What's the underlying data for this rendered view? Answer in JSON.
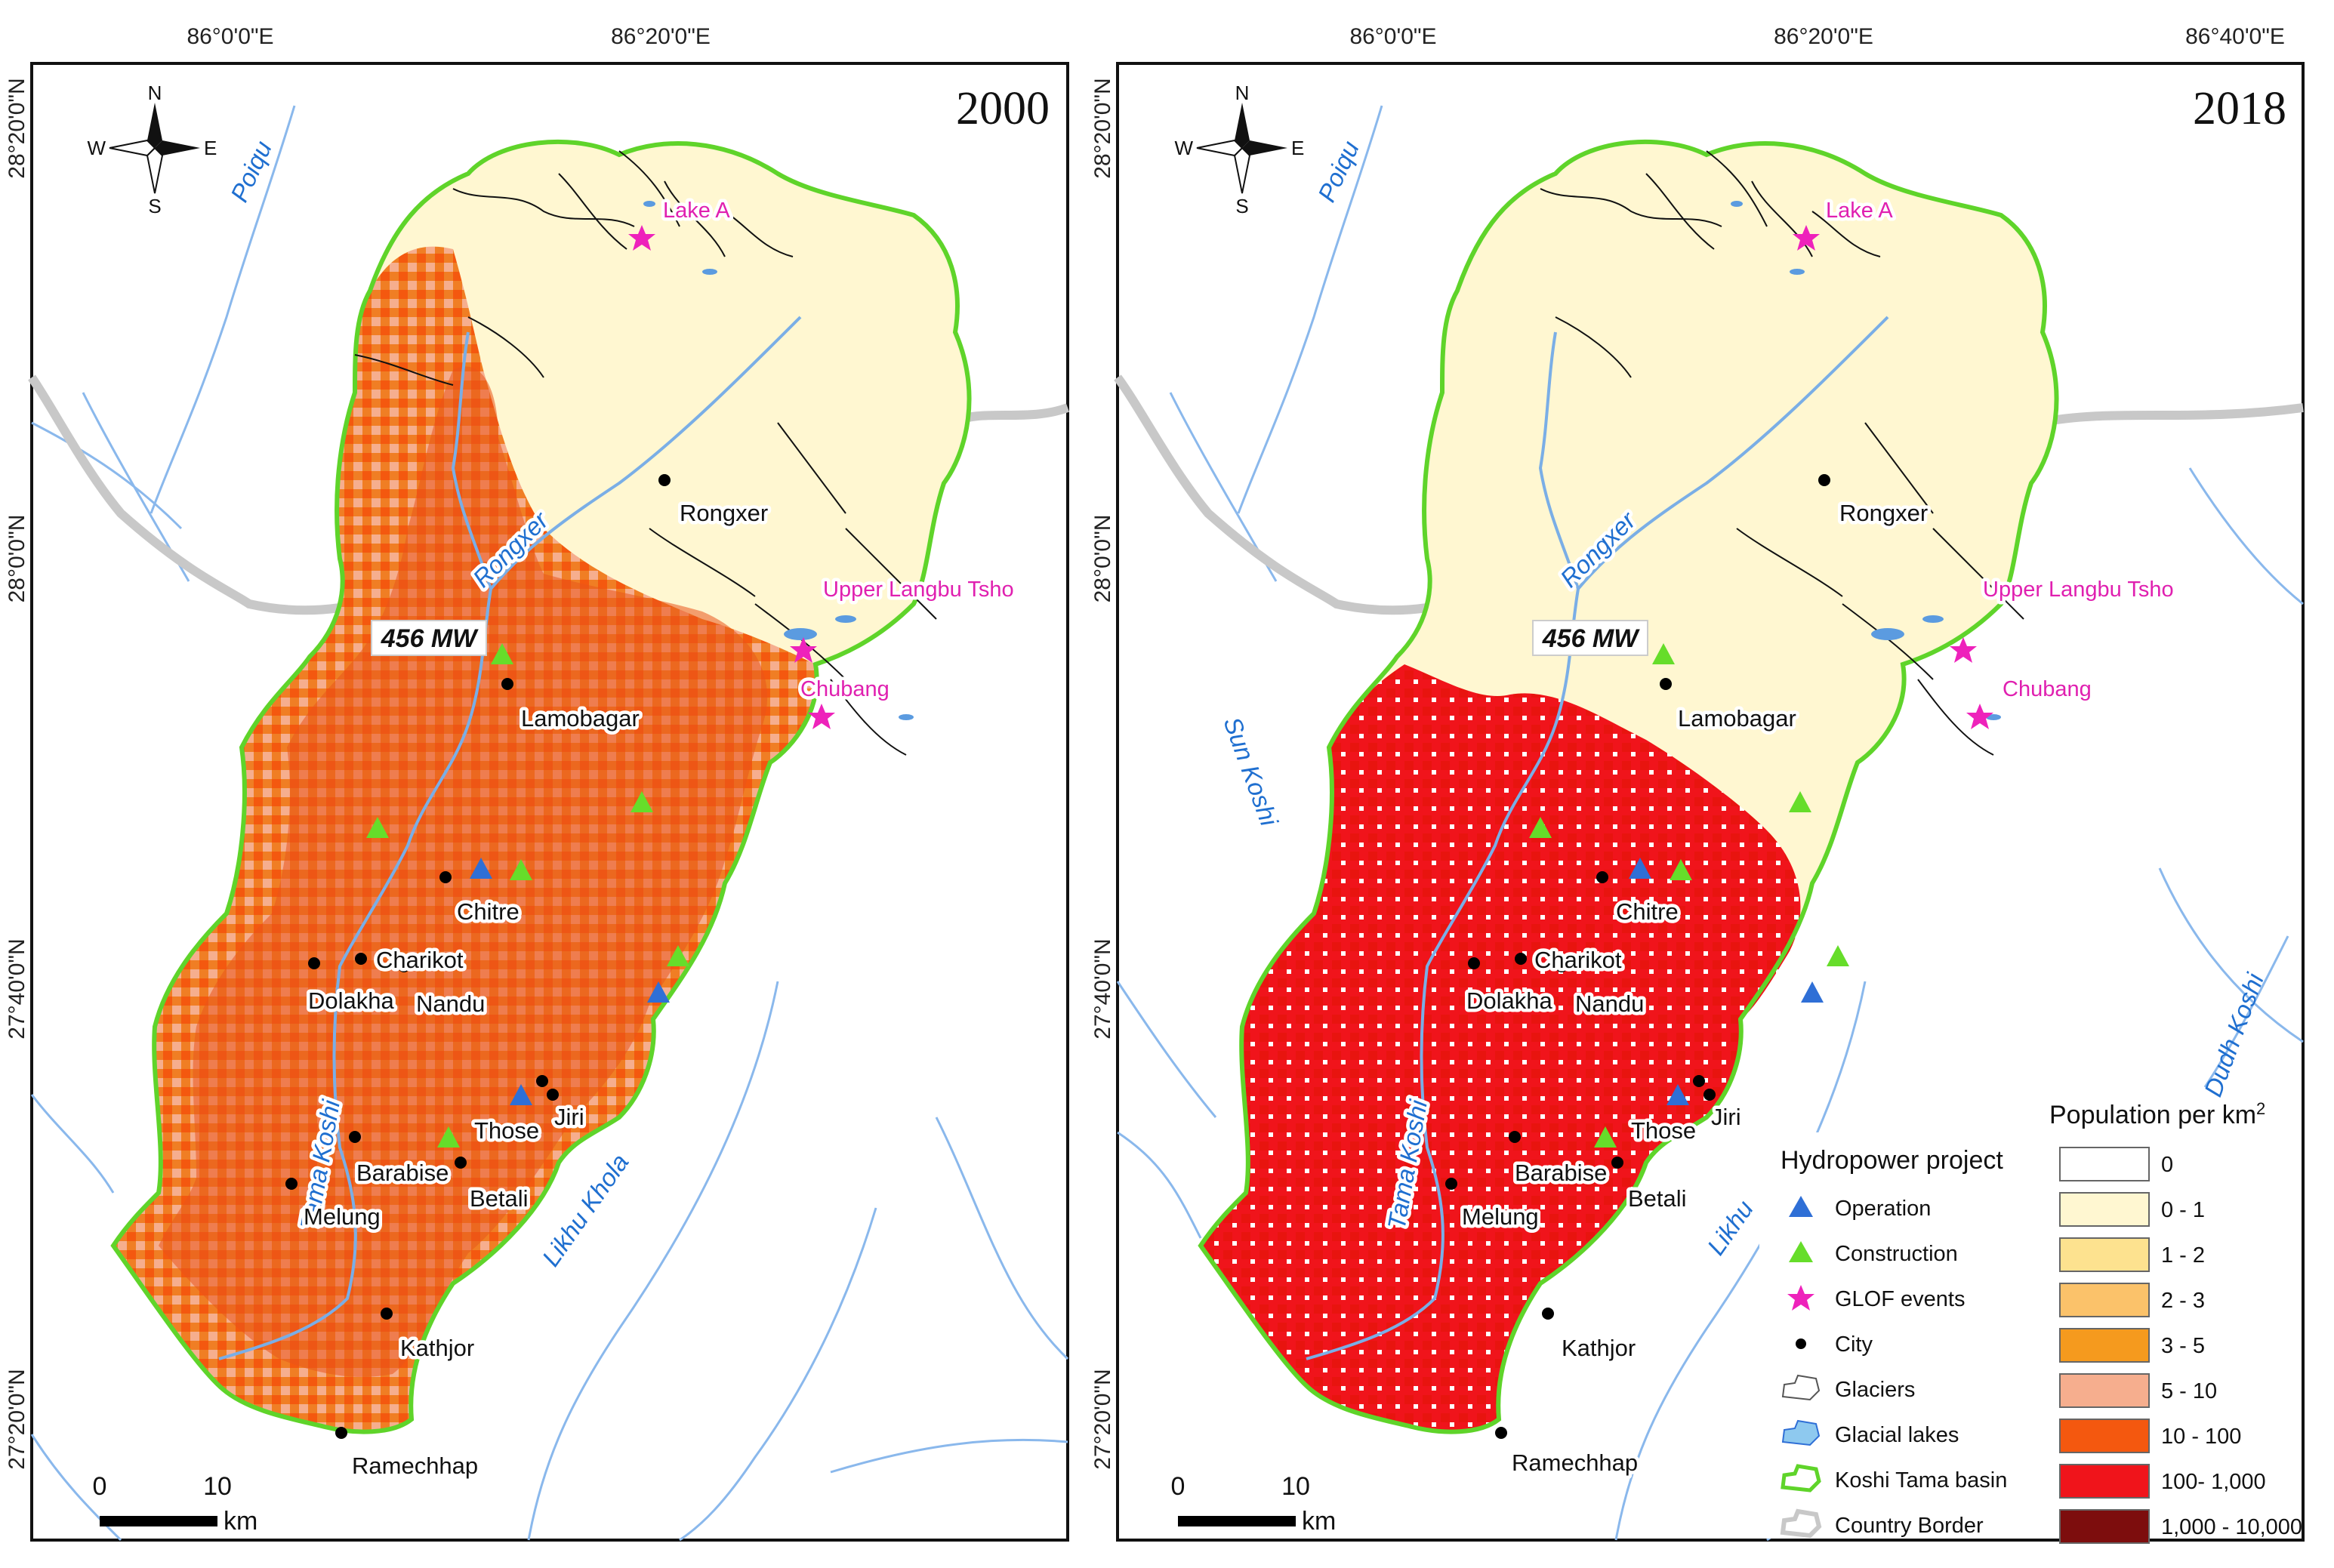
{
  "colors": {
    "basin": "#5fd42a",
    "river": "#7aaee6",
    "border": "#c8c8c8",
    "lake": "#5b9be0",
    "operation": "#2f6fd6",
    "construction": "#66dd2a",
    "glof": "#ee22bb",
    "city": "#000000"
  },
  "axes": {
    "lon_labels": [
      "86°0'0\"E",
      "86°20'0\"E",
      "86°40'0\"E"
    ],
    "lat_labels": [
      "28°20'0\"N",
      "28°0'0\"N",
      "27°40'0\"N",
      "27°20'0\"N"
    ]
  },
  "maps": [
    {
      "year": "2000",
      "dam_label": "456 MW",
      "fill_color": "#f07e24",
      "core_color": "#e9561b"
    },
    {
      "year": "2018",
      "dam_label": "456 MW",
      "fill_color": "#f01b12",
      "core_color": "#e8140f"
    }
  ],
  "places": {
    "rongxer": "Rongxer",
    "lamobagar": "Lamobagar",
    "chitre": "Chitre",
    "charikot": "Charikot",
    "dolakha": "Dolakha",
    "nandu": "Nandu",
    "those": "Those",
    "jiri": "Jiri",
    "barabise": "Barabise",
    "betali": "Betali",
    "melung": "Melung",
    "kathjor": "Kathjor",
    "ramechhap": "Ramechhap"
  },
  "glof_events": {
    "lake_a": "Lake A",
    "upper_langbu": "Upper Langbu Tsho",
    "chubang": "Chubang"
  },
  "rivers": {
    "poiqu": "Poiqu",
    "rongxer": "Rongxer",
    "tama_koshi": "Tama Koshi",
    "likhu_khola": "Likhu Khola",
    "sun_koshi": "Sun Koshi",
    "dudh_koshi": "Dudh Koshi",
    "likhu_partial": "Likhu"
  },
  "compass": {
    "n": "N",
    "s": "S",
    "e": "E",
    "w": "W"
  },
  "scale_bar": {
    "zero": "0",
    "ten": "10",
    "unit": "km"
  },
  "legend_hydro": {
    "title": "Hydropower project",
    "items": [
      {
        "label": "Operation",
        "symbol": "triangle-blue"
      },
      {
        "label": "Construction",
        "symbol": "triangle-green"
      },
      {
        "label": "GLOF events",
        "symbol": "star-magenta"
      },
      {
        "label": "City",
        "symbol": "dot-black"
      },
      {
        "label": "Glaciers",
        "symbol": "outline-gray"
      },
      {
        "label": "Glacial lakes",
        "symbol": "lake-blue"
      },
      {
        "label": "Koshi Tama basin",
        "symbol": "outline-green"
      },
      {
        "label": "Country Border",
        "symbol": "outline-lightgray"
      }
    ]
  },
  "legend_population": {
    "title": "Population per km",
    "title_sup": "2",
    "classes": [
      {
        "label": "0",
        "color": "#ffffff"
      },
      {
        "label": "0 - 1",
        "color": "#fff7d1"
      },
      {
        "label": "1 - 2",
        "color": "#fde28f"
      },
      {
        "label": "2 - 3",
        "color": "#fbc26a"
      },
      {
        "label": "3 - 5",
        "color": "#f59a1e"
      },
      {
        "label": "5 - 10",
        "color": "#f6ae8e"
      },
      {
        "label": "10 - 100",
        "color": "#f4580f"
      },
      {
        "label": "100- 1,000",
        "color": "#f0141b"
      },
      {
        "label": "1,000 - 10,000",
        "color": "#7d0d0d"
      }
    ]
  }
}
